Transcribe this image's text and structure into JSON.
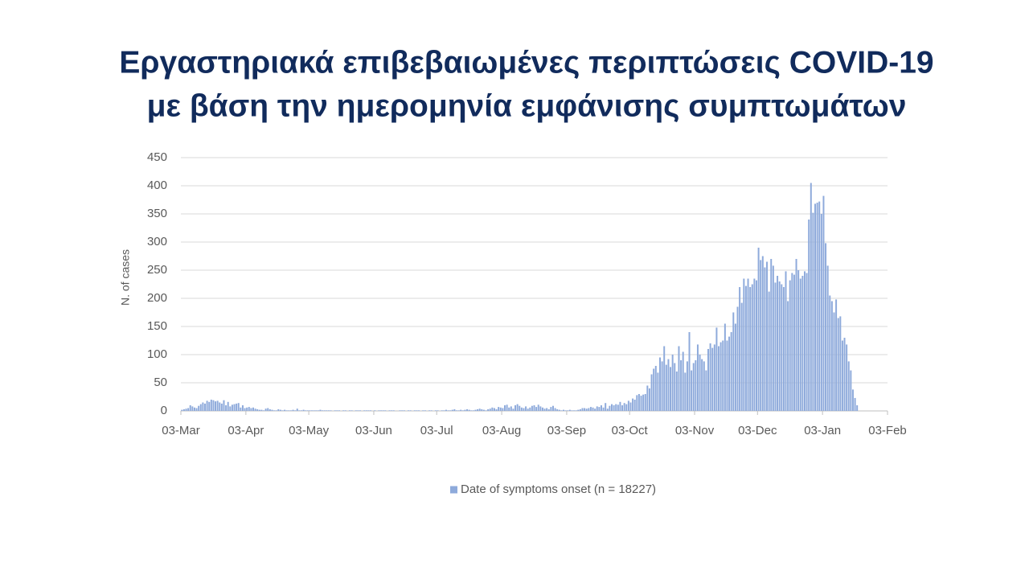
{
  "chart_data": {
    "type": "bar",
    "title": [
      "Εργαστηριακά επιβεβαιωμένες περιπτώσεις COVID-19",
      "με βάση την ημερομηνία εμφάνισης συμπτωμάτων"
    ],
    "y_label": "N. of cases",
    "xlim": [
      0,
      337
    ],
    "xticks": [
      {
        "value": 0,
        "label": "03-Mar"
      },
      {
        "value": 31,
        "label": "03-Apr"
      },
      {
        "value": 61,
        "label": "03-May"
      },
      {
        "value": 92,
        "label": "03-Jun"
      },
      {
        "value": 122,
        "label": "03-Jul"
      },
      {
        "value": 153,
        "label": "03-Aug"
      },
      {
        "value": 184,
        "label": "03-Sep"
      },
      {
        "value": 214,
        "label": "03-Oct"
      },
      {
        "value": 245,
        "label": "03-Nov"
      },
      {
        "value": 275,
        "label": "03-Dec"
      },
      {
        "value": 306,
        "label": "03-Jan"
      },
      {
        "value": 337,
        "label": "03-Feb"
      }
    ],
    "ylim": [
      0,
      450
    ],
    "yticks": [
      0,
      50,
      100,
      150,
      200,
      250,
      300,
      350,
      400,
      450
    ],
    "grid": true,
    "legend": "bottom",
    "x": [
      0,
      1,
      2,
      3,
      4,
      5,
      6,
      7,
      8,
      9,
      10,
      11,
      12,
      13,
      14,
      15,
      16,
      17,
      18,
      19,
      20,
      21,
      22,
      23,
      24,
      25,
      26,
      27,
      28,
      29,
      30,
      31,
      32,
      33,
      34,
      35,
      36,
      37,
      38,
      39,
      40,
      41,
      42,
      43,
      44,
      45,
      46,
      47,
      48,
      49,
      50,
      51,
      52,
      53,
      54,
      55,
      56,
      57,
      58,
      59,
      60,
      61,
      62,
      63,
      64,
      65,
      66,
      67,
      68,
      69,
      70,
      71,
      72,
      73,
      74,
      75,
      76,
      77,
      78,
      79,
      80,
      81,
      82,
      83,
      84,
      85,
      86,
      87,
      88,
      89,
      90,
      91,
      92,
      93,
      94,
      95,
      96,
      97,
      98,
      99,
      100,
      101,
      102,
      103,
      104,
      105,
      106,
      107,
      108,
      109,
      110,
      111,
      112,
      113,
      114,
      115,
      116,
      117,
      118,
      119,
      120,
      121,
      122,
      123,
      124,
      125,
      126,
      127,
      128,
      129,
      130,
      131,
      132,
      133,
      134,
      135,
      136,
      137,
      138,
      139,
      140,
      141,
      142,
      143,
      144,
      145,
      146,
      147,
      148,
      149,
      150,
      151,
      152,
      153,
      154,
      155,
      156,
      157,
      158,
      159,
      160,
      161,
      162,
      163,
      164,
      165,
      166,
      167,
      168,
      169,
      170,
      171,
      172,
      173,
      174,
      175,
      176,
      177,
      178,
      179,
      180,
      181,
      182,
      183,
      184,
      185,
      186,
      187,
      188,
      189,
      190,
      191,
      192,
      193,
      194,
      195,
      196,
      197,
      198,
      199,
      200,
      201,
      202,
      203,
      204,
      205,
      206,
      207,
      208,
      209,
      210,
      211,
      212,
      213,
      214,
      215,
      216,
      217,
      218,
      219,
      220,
      221,
      222,
      223,
      224,
      225,
      226,
      227,
      228,
      229,
      230,
      231,
      232,
      233,
      234,
      235,
      236,
      237,
      238,
      239,
      240,
      241,
      242,
      243,
      244,
      245,
      246,
      247,
      248,
      249,
      250,
      251,
      252,
      253,
      254,
      255,
      256,
      257,
      258,
      259,
      260,
      261,
      262,
      263,
      264,
      265,
      266,
      267,
      268,
      269,
      270,
      271,
      272,
      273,
      274,
      275,
      276,
      277,
      278,
      279,
      280,
      281,
      282,
      283,
      284,
      285,
      286,
      287,
      288,
      289,
      290,
      291,
      292,
      293,
      294,
      295,
      296,
      297,
      298,
      299,
      300,
      301,
      302,
      303,
      304,
      305,
      306,
      307,
      308,
      309,
      310,
      311,
      312,
      313,
      314,
      315,
      316,
      317,
      318,
      319,
      320,
      321,
      322
    ],
    "series": [
      {
        "name": "Date of symptoms onset (n = 18227)",
        "color": "#8eaadb",
        "values": [
          2,
          3,
          4,
          5,
          10,
          8,
          6,
          5,
          9,
          12,
          15,
          13,
          18,
          16,
          20,
          19,
          17,
          18,
          15,
          13,
          19,
          10,
          16,
          8,
          11,
          12,
          13,
          14,
          6,
          10,
          5,
          6,
          7,
          5,
          6,
          4,
          3,
          2,
          2,
          1,
          4,
          5,
          3,
          2,
          1,
          1,
          3,
          2,
          1,
          2,
          1,
          1,
          1,
          2,
          1,
          4,
          1,
          1,
          2,
          1,
          1,
          1,
          1,
          1,
          1,
          1,
          2,
          1,
          1,
          1,
          1,
          1,
          0,
          1,
          1,
          1,
          0,
          1,
          1,
          0,
          1,
          1,
          0,
          1,
          1,
          1,
          0,
          1,
          1,
          1,
          1,
          0,
          1,
          0,
          1,
          1,
          1,
          1,
          0,
          1,
          1,
          1,
          0,
          0,
          1,
          1,
          1,
          0,
          1,
          1,
          0,
          1,
          1,
          1,
          0,
          1,
          1,
          0,
          1,
          1,
          0,
          1,
          1,
          0,
          1,
          1,
          2,
          1,
          1,
          2,
          3,
          1,
          1,
          2,
          1,
          2,
          3,
          2,
          1,
          1,
          2,
          3,
          4,
          3,
          2,
          1,
          3,
          4,
          6,
          5,
          3,
          7,
          6,
          5,
          10,
          11,
          6,
          8,
          4,
          10,
          12,
          9,
          6,
          5,
          8,
          4,
          6,
          9,
          10,
          7,
          11,
          8,
          6,
          4,
          5,
          3,
          7,
          9,
          5,
          3,
          2,
          1,
          2,
          1,
          1,
          2,
          1,
          1,
          1,
          2,
          3,
          5,
          5,
          4,
          5,
          7,
          6,
          4,
          8,
          7,
          10,
          6,
          14,
          4,
          9,
          12,
          10,
          12,
          11,
          16,
          10,
          14,
          12,
          18,
          15,
          22,
          20,
          28,
          30,
          27,
          29,
          30,
          45,
          40,
          65,
          75,
          80,
          68,
          95,
          88,
          115,
          82,
          92,
          78,
          100,
          85,
          70,
          115,
          90,
          105,
          68,
          88,
          140,
          72,
          85,
          90,
          118,
          100,
          92,
          88,
          72,
          110,
          120,
          112,
          118,
          148,
          115,
          122,
          125,
          155,
          125,
          132,
          140,
          175,
          155,
          185,
          220,
          192,
          235,
          222,
          235,
          220,
          225,
          235,
          232,
          290,
          268,
          275,
          255,
          265,
          212,
          270,
          258,
          228,
          240,
          230,
          225,
          220,
          248,
          195,
          232,
          245,
          242,
          270,
          250,
          235,
          240,
          248,
          245,
          340,
          405,
          352,
          368,
          370,
          372,
          350,
          382,
          298,
          258,
          205,
          195,
          175,
          198,
          165,
          168,
          125,
          130,
          118,
          88,
          72,
          38,
          23,
          10
        ]
      }
    ]
  }
}
